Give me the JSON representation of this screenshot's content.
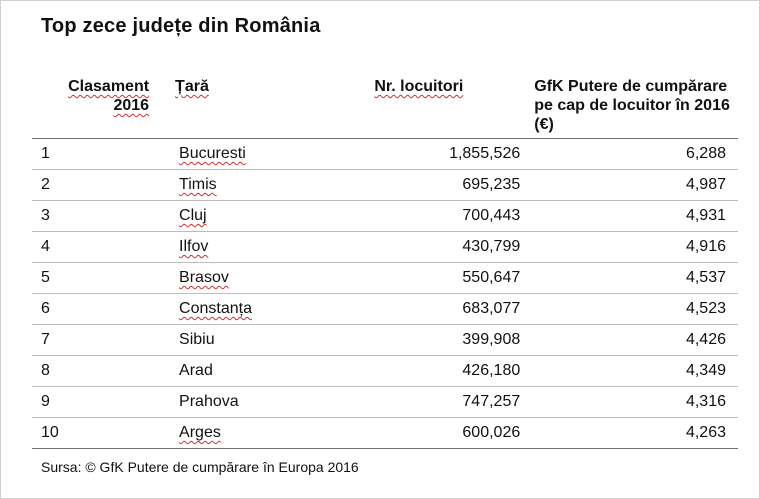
{
  "title": "Top zece județe din România",
  "headers": {
    "rank": "Clasament 2016",
    "name": "Țară",
    "population": "Nr. locuitori",
    "gfk": "GfK Putere de cumpărare pe cap de locuitor în 2016 (€)"
  },
  "rows": [
    {
      "rank": "1",
      "name": "Bucuresti",
      "population": "1,855,526",
      "gfk": "6,288"
    },
    {
      "rank": "2",
      "name": "Timis",
      "population": "695,235",
      "gfk": "4,987"
    },
    {
      "rank": "3",
      "name": "Cluj",
      "population": "700,443",
      "gfk": "4,931"
    },
    {
      "rank": "4",
      "name": "Ilfov",
      "population": "430,799",
      "gfk": "4,916"
    },
    {
      "rank": "5",
      "name": "Brasov",
      "population": "550,647",
      "gfk": "4,537"
    },
    {
      "rank": "6",
      "name": "Constanța",
      "population": "683,077",
      "gfk": "4,523"
    },
    {
      "rank": "7",
      "name": "Sibiu",
      "population": "399,908",
      "gfk": "4,426"
    },
    {
      "rank": "8",
      "name": "Arad",
      "population": "426,180",
      "gfk": "4,349"
    },
    {
      "rank": "9",
      "name": "Prahova",
      "population": "747,257",
      "gfk": "4,316"
    },
    {
      "rank": "10",
      "name": "Arges",
      "population": "600,026",
      "gfk": "4,263"
    }
  ],
  "source": "Sursa: © GfK Putere de cumpărare în Europa 2016"
}
